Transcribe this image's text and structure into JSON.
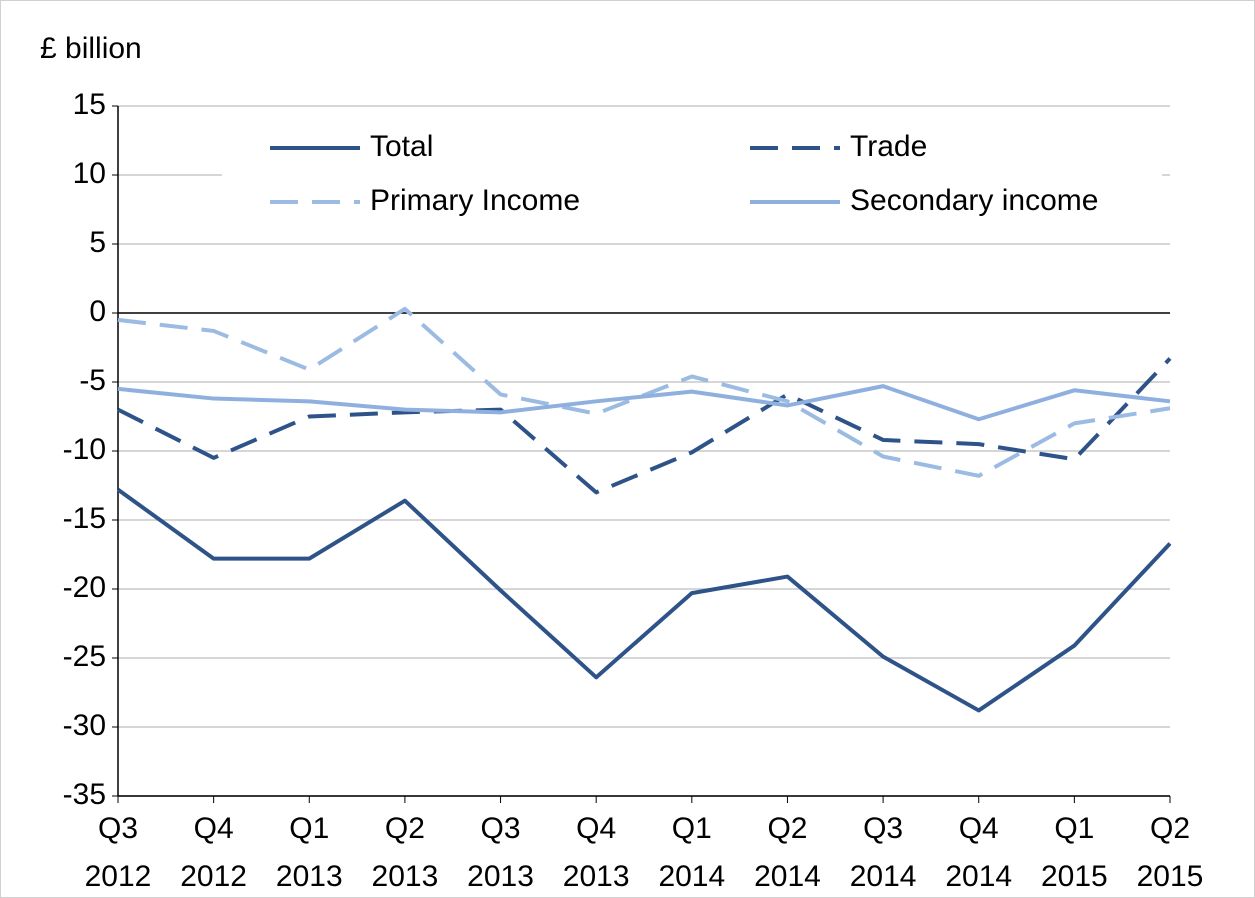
{
  "chart_data": {
    "type": "line",
    "y_axis_label": "£ billion",
    "categories": [
      "Q3 2012",
      "Q4 2012",
      "Q1 2013",
      "Q2 2013",
      "Q3 2013",
      "Q4 2013",
      "Q1 2014",
      "Q2 2014",
      "Q3 2014",
      "Q4 2014",
      "Q1 2015",
      "Q2 2015"
    ],
    "series": [
      {
        "name": "Total",
        "color": "#2e5389",
        "dashed": false,
        "values": [
          -12.8,
          -17.8,
          -17.8,
          -13.6,
          -20.1,
          -26.4,
          -20.3,
          -19.1,
          -24.9,
          -28.8,
          -24.1,
          -16.7
        ]
      },
      {
        "name": "Trade",
        "color": "#2e5389",
        "dashed": true,
        "values": [
          -7.0,
          -10.5,
          -7.5,
          -7.2,
          -7.0,
          -13.0,
          -10.1,
          -5.9,
          -9.2,
          -9.5,
          -10.6,
          -3.3
        ]
      },
      {
        "name": "Primary Income",
        "color": "#9bbbe3",
        "dashed": true,
        "values": [
          -0.5,
          -1.3,
          -4.1,
          0.3,
          -5.9,
          -7.3,
          -4.6,
          -6.4,
          -10.4,
          -11.8,
          -8.0,
          -6.9
        ]
      },
      {
        "name": "Secondary income",
        "color": "#8fb0de",
        "dashed": false,
        "values": [
          -5.5,
          -6.2,
          -6.4,
          -7.0,
          -7.2,
          -6.4,
          -5.7,
          -6.7,
          -5.3,
          -7.7,
          -5.6,
          -6.4
        ]
      }
    ],
    "ylim": [
      -35,
      15
    ],
    "yticks": [
      -35,
      -30,
      -25,
      -20,
      -15,
      -10,
      -5,
      0,
      5,
      10,
      15
    ],
    "grid": true,
    "legend": "top"
  }
}
